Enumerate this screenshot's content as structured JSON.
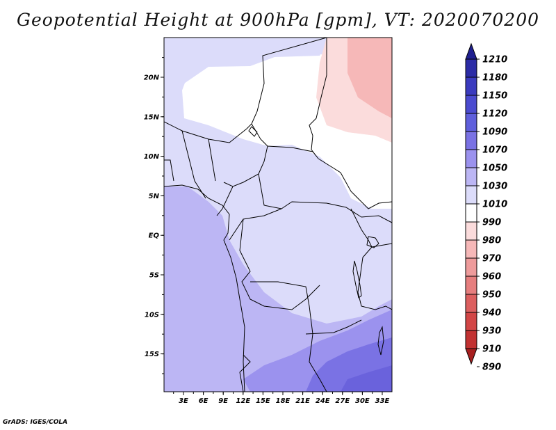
{
  "title": "Geopotential Height at 900hPa [gpm], VT: 2020070200",
  "credit": "GrADS: IGES/COLA",
  "map": {
    "lat_labels": [
      "20N",
      "15N",
      "10N",
      "5N",
      "EQ",
      "5S",
      "10S",
      "15S"
    ],
    "lon_labels": [
      "3E",
      "6E",
      "9E",
      "12E",
      "15E",
      "18E",
      "21E",
      "24E",
      "27E",
      "30E",
      "33E"
    ]
  },
  "colorbar": {
    "levels": [
      "1210",
      "1180",
      "1150",
      "1120",
      "1090",
      "1070",
      "1050",
      "1030",
      "1010",
      "990",
      "980",
      "970",
      "960",
      "950",
      "940",
      "930",
      "910",
      "890"
    ],
    "colors": [
      "#1f1f8f",
      "#2c2ca6",
      "#3b3bbf",
      "#4b4bd0",
      "#5f5fdc",
      "#7a72e4",
      "#9b92ee",
      "#bcb6f4",
      "#dcdcfa",
      "#ffffff",
      "#fbdcdc",
      "#f6b8b8",
      "#ee9b9b",
      "#e67e7e",
      "#dc5f5f",
      "#d24646",
      "#c23232",
      "#a71f1f"
    ]
  }
}
